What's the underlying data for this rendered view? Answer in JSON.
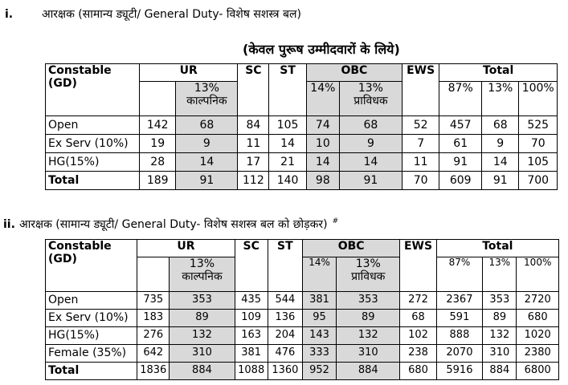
{
  "section1": {
    "number": "i.",
    "title": "आरक्षक (सामान्य ड्यूटी/ General Duty- विशेष सशस्त्र बल)",
    "note": "(केवल पुरूष उम्मीदवारों के लिये)"
  },
  "section2": {
    "number": "ii.",
    "title": "आरक्षक (सामान्य ड्यूटी/ General Duty- विशेष सशस्त्र बल को छोड़कर)",
    "marker": "#"
  },
  "headers": {
    "constable": "Constable",
    "gd": "(GD)",
    "ur": "UR",
    "sc": "SC",
    "st": "ST",
    "obc": "OBC",
    "ews": "EWS",
    "total": "Total",
    "ur_sub_pct": "13%",
    "ur_sub_text": "काल्पनिक",
    "obc_sub1": "14%",
    "obc_sub2_pct": "13%",
    "obc_sub2_text": "प्राविधक",
    "total_sub1": "87%",
    "total_sub2": "13%",
    "total_sub3": "100%"
  },
  "table1_rows": [
    {
      "label": "Open",
      "cells": [
        "142",
        "68",
        "84",
        "105",
        "74",
        "68",
        "52",
        "457",
        "68",
        "525"
      ]
    },
    {
      "label": "Ex Serv (10%)",
      "cells": [
        "19",
        "9",
        "11",
        "14",
        "10",
        "9",
        "7",
        "61",
        "9",
        "70"
      ]
    },
    {
      "label": "HG(15%)",
      "cells": [
        "28",
        "14",
        "17",
        "21",
        "14",
        "14",
        "11",
        "91",
        "14",
        "105"
      ]
    },
    {
      "label": "Total",
      "cells": [
        "189",
        "91",
        "112",
        "140",
        "98",
        "91",
        "70",
        "609",
        "91",
        "700"
      ]
    }
  ],
  "table2_rows": [
    {
      "label": "Open",
      "cells": [
        "735",
        "353",
        "435",
        "544",
        "381",
        "353",
        "272",
        "2367",
        "353",
        "2720"
      ]
    },
    {
      "label": "Ex Serv (10%)",
      "cells": [
        "183",
        "89",
        "109",
        "136",
        "95",
        "89",
        "68",
        "591",
        "89",
        "680"
      ]
    },
    {
      "label": "HG(15%)",
      "cells": [
        "276",
        "132",
        "163",
        "204",
        "143",
        "132",
        "102",
        "888",
        "132",
        "1020"
      ]
    },
    {
      "label": "Female (35%)",
      "cells": [
        "642",
        "310",
        "381",
        "476",
        "333",
        "310",
        "238",
        "2070",
        "310",
        "2380"
      ]
    },
    {
      "label": "Total",
      "cells": [
        "1836",
        "884",
        "1088",
        "1360",
        "952",
        "884",
        "680",
        "5916",
        "884",
        "6800"
      ]
    }
  ]
}
